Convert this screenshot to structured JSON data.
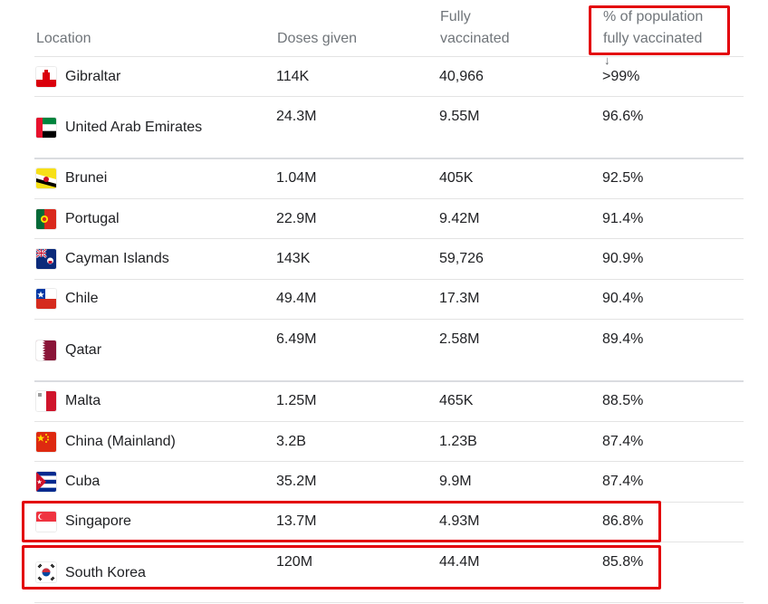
{
  "header": {
    "location": "Location",
    "doses": "Doses given",
    "fully_line1": "Fully",
    "fully_line2": "vaccinated",
    "pct_line1": "% of population",
    "pct_line2": "fully vaccinated",
    "sort_icon": "arrow-down-icon"
  },
  "rows": [
    {
      "name": "Gibraltar",
      "doses": "114K",
      "fully": "40,966",
      "pct": ">99%",
      "flag_icon": "gibraltar-flag-icon"
    },
    {
      "name": "United Arab Emirates",
      "doses": "24.3M",
      "fully": "9.55M",
      "pct": "96.6%",
      "flag_icon": "uae-flag-icon"
    },
    {
      "name": "Brunei",
      "doses": "1.04M",
      "fully": "405K",
      "pct": "92.5%",
      "flag_icon": "brunei-flag-icon"
    },
    {
      "name": "Portugal",
      "doses": "22.9M",
      "fully": "9.42M",
      "pct": "91.4%",
      "flag_icon": "portugal-flag-icon"
    },
    {
      "name": "Cayman Islands",
      "doses": "143K",
      "fully": "59,726",
      "pct": "90.9%",
      "flag_icon": "cayman-islands-flag-icon"
    },
    {
      "name": "Chile",
      "doses": "49.4M",
      "fully": "17.3M",
      "pct": "90.4%",
      "flag_icon": "chile-flag-icon"
    },
    {
      "name": "Qatar",
      "doses": "6.49M",
      "fully": "2.58M",
      "pct": "89.4%",
      "flag_icon": "qatar-flag-icon"
    },
    {
      "name": "Malta",
      "doses": "1.25M",
      "fully": "465K",
      "pct": "88.5%",
      "flag_icon": "malta-flag-icon"
    },
    {
      "name": "China (Mainland)",
      "doses": "3.2B",
      "fully": "1.23B",
      "pct": "87.4%",
      "flag_icon": "china-flag-icon"
    },
    {
      "name": "Cuba",
      "doses": "35.2M",
      "fully": "9.9M",
      "pct": "87.4%",
      "flag_icon": "cuba-flag-icon"
    },
    {
      "name": "Singapore",
      "doses": "13.7M",
      "fully": "4.93M",
      "pct": "86.8%",
      "flag_icon": "singapore-flag-icon"
    },
    {
      "name": "South Korea",
      "doses": "120M",
      "fully": "44.4M",
      "pct": "85.8%",
      "flag_icon": "south-korea-flag-icon"
    }
  ],
  "colors": {
    "highlight": "#e3000b",
    "header_text": "#70757a",
    "body_text": "#202124"
  }
}
